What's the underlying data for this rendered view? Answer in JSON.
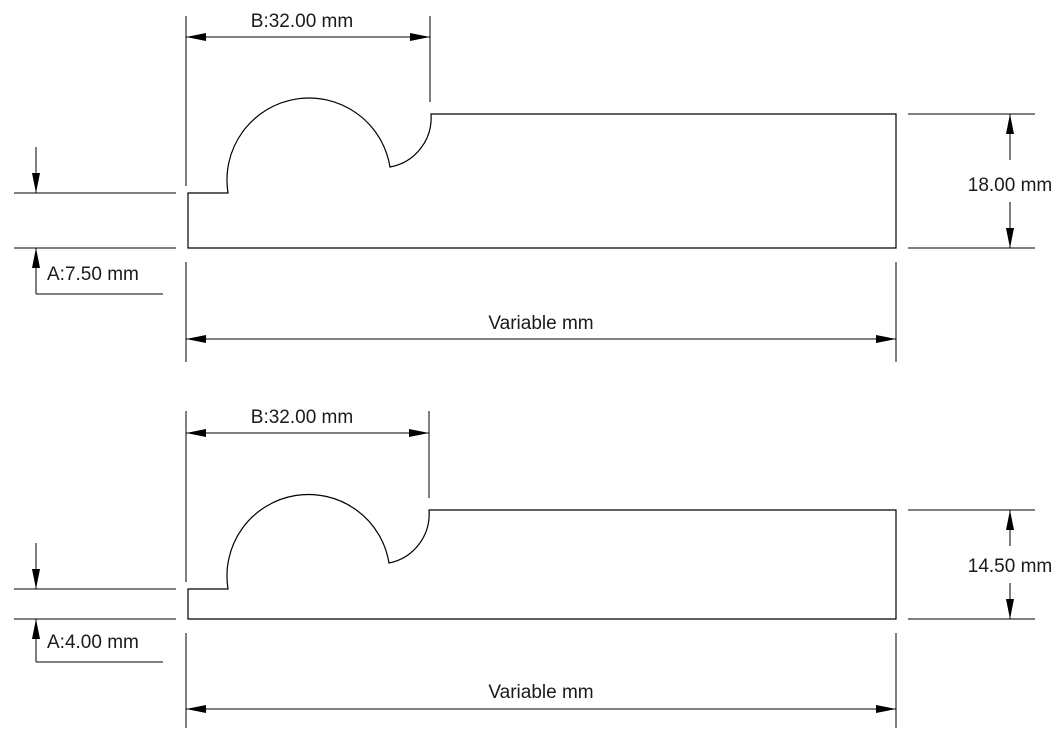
{
  "drawings": [
    {
      "dim_b_label": "B:32.00 mm",
      "dim_height_label": "18.00 mm",
      "dim_a_label": "A:7.50 mm",
      "dim_length_label": "Variable mm"
    },
    {
      "dim_b_label": "B:32.00 mm",
      "dim_height_label": "14.50 mm",
      "dim_a_label": "A:4.00 mm",
      "dim_length_label": "Variable mm"
    }
  ]
}
